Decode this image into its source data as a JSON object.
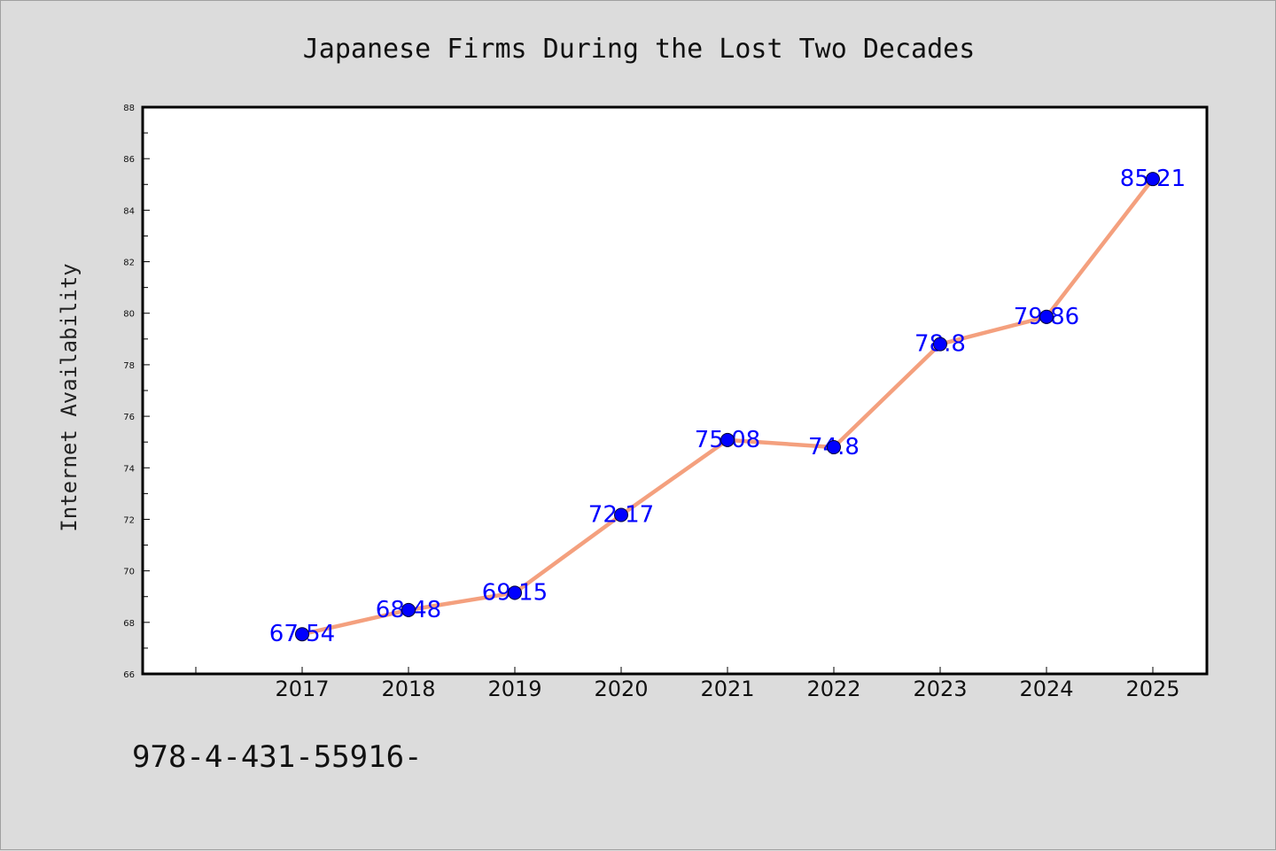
{
  "chart_data": {
    "type": "line",
    "title": "Japanese Firms During the Lost Two Decades",
    "xlabel": "",
    "ylabel": "Internet Availability",
    "categories": [
      "2017",
      "2018",
      "2019",
      "2020",
      "2021",
      "2022",
      "2023",
      "2024",
      "2025"
    ],
    "values": [
      67.54,
      68.48,
      69.15,
      72.17,
      75.08,
      74.8,
      78.8,
      79.86,
      85.21
    ],
    "data_labels": [
      "67.54",
      "68.48",
      "69.15",
      "72.17",
      "75.08",
      "74.8",
      "78.8",
      "79.86",
      "85.21"
    ],
    "ylim": [
      66,
      88
    ],
    "yticks": [
      "66",
      "68",
      "70",
      "72",
      "74",
      "76",
      "78",
      "80",
      "82",
      "84",
      "86",
      "88"
    ],
    "grid": false,
    "legend": "none",
    "colors": {
      "line": "#f4a07e",
      "marker": "#0000ff",
      "label": "#0000ff",
      "plot_bg": "#ffffff",
      "page_bg": "#dcdcdc"
    }
  },
  "footer": {
    "code": "978-4-431-55916-"
  }
}
